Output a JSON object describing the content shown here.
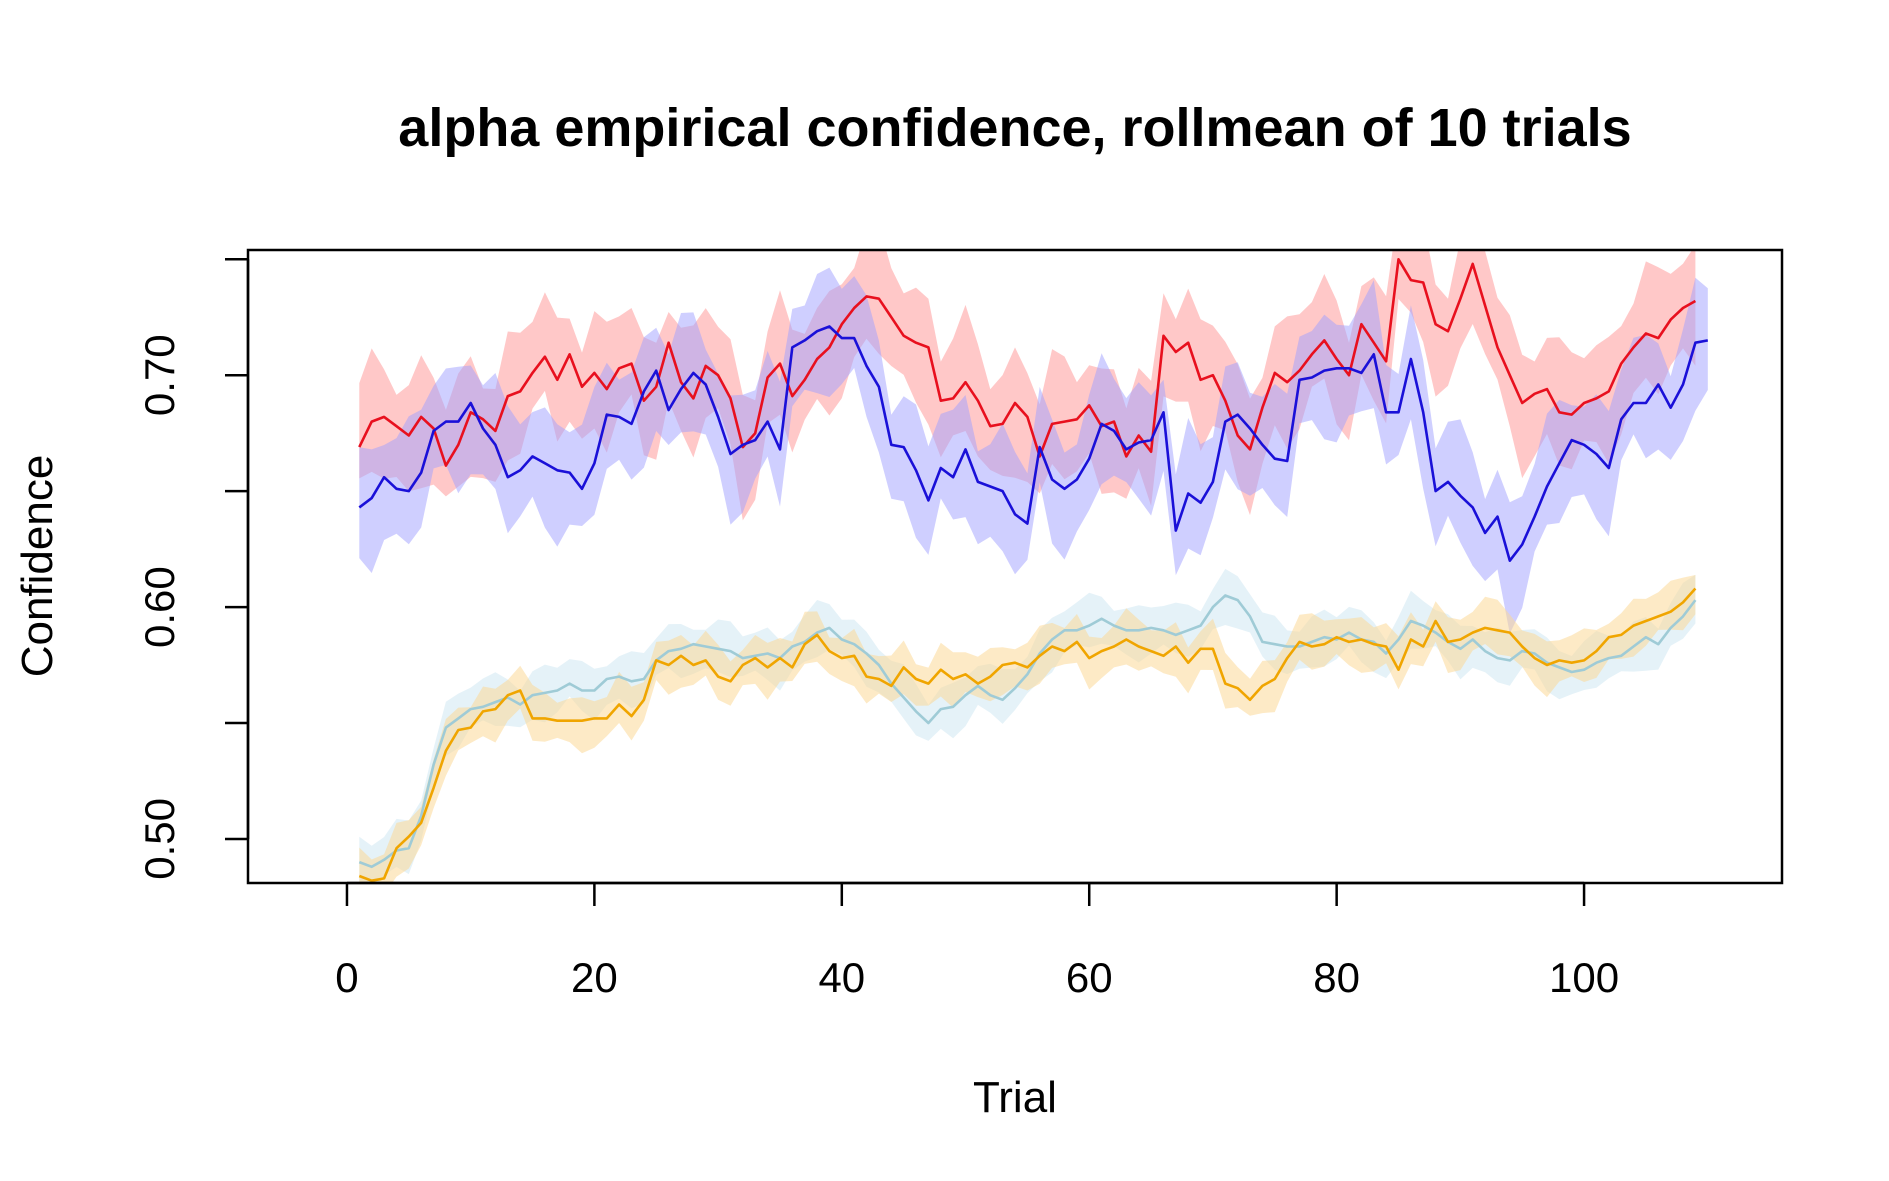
{
  "chart_data": {
    "type": "line",
    "title": "alpha empirical confidence, rollmean of  10 trials",
    "xlabel": "Trial",
    "ylabel": "Confidence",
    "xlim": [
      -8,
      116
    ],
    "ylim": [
      0.481,
      0.754
    ],
    "xticks": [
      0,
      20,
      40,
      60,
      80,
      100
    ],
    "yticks": [
      0.5,
      0.55,
      0.6,
      0.65,
      0.7,
      0.75
    ],
    "ytick_labels": [
      "0.50",
      "",
      "0.60",
      "",
      "0.70",
      ""
    ],
    "grid": false,
    "legend": "none",
    "x_start": 1,
    "series": [
      {
        "line_color": "#e8101e",
        "band_color": "#ff9a9a",
        "band_opacity": 0.55,
        "band_halfwidth": 0.023,
        "values": [
          0.669,
          0.68,
          0.682,
          0.678,
          0.674,
          0.682,
          0.677,
          0.661,
          0.67,
          0.684,
          0.681,
          0.676,
          0.691,
          0.693,
          0.701,
          0.708,
          0.698,
          0.709,
          0.695,
          0.701,
          0.694,
          0.703,
          0.705,
          0.689,
          0.695,
          0.714,
          0.697,
          0.69,
          0.704,
          0.7,
          0.69,
          0.669,
          0.675,
          0.699,
          0.705,
          0.691,
          0.698,
          0.707,
          0.712,
          0.722,
          0.729,
          0.734,
          0.733,
          0.725,
          0.717,
          0.714,
          0.712,
          0.689,
          0.69,
          0.697,
          0.689,
          0.678,
          0.679,
          0.688,
          0.682,
          0.665,
          0.679,
          0.68,
          0.681,
          0.687,
          0.678,
          0.68,
          0.665,
          0.674,
          0.667,
          0.717,
          0.71,
          0.714,
          0.698,
          0.7,
          0.689,
          0.674,
          0.668,
          0.686,
          0.701,
          0.697,
          0.702,
          0.709,
          0.715,
          0.707,
          0.7,
          0.722,
          0.714,
          0.706,
          0.75,
          0.741,
          0.74,
          0.722,
          0.719,
          0.733,
          0.748,
          0.73,
          0.712,
          0.7,
          0.688,
          0.692,
          0.694,
          0.684,
          0.683,
          0.688,
          0.69,
          0.693,
          0.705,
          0.712,
          0.718,
          0.716,
          0.724,
          0.729,
          0.732
        ],
        "hidden_values": [
          0.669,
          0.68,
          0.682,
          0.678,
          0.674,
          0.682,
          0.677,
          0.661,
          0.67,
          0.684,
          0.681,
          0.676,
          0.691,
          0.693,
          0.701,
          0.708,
          0.698,
          0.709,
          0.695,
          0.701,
          0.694,
          0.703,
          0.705,
          0.689,
          0.695,
          0.714,
          0.697,
          0.69,
          0.704,
          0.7,
          0.69,
          0.669,
          0.675,
          0.699,
          0.705,
          0.691,
          0.698,
          0.707,
          0.712,
          0.722,
          0.729,
          0.734,
          0.733,
          0.725,
          0.717,
          0.714,
          0.712,
          0.689,
          0.69,
          0.697,
          0.689,
          0.678,
          0.679,
          0.688,
          0.682,
          0.665,
          0.679,
          0.68,
          0.681,
          0.687,
          0.678,
          0.68,
          0.665,
          0.674,
          0.667,
          0.717,
          0.71,
          0.714,
          0.698,
          0.7,
          0.689,
          0.674,
          0.668,
          0.686,
          0.701,
          0.697,
          0.702,
          0.709,
          0.715,
          0.707,
          0.7,
          0.722,
          0.714,
          0.706,
          0.75,
          0.741,
          0.74,
          0.722,
          0.719,
          0.733,
          0.748,
          0.73,
          0.712,
          0.7,
          0.688,
          0.692,
          0.694,
          0.684,
          0.683,
          0.688,
          0.69,
          0.693,
          0.705,
          0.712,
          0.718,
          0.716,
          0.724,
          0.729,
          0.732
        ]
      },
      {
        "line_color": "#1a10d8",
        "band_color": "#a0a0ff",
        "band_opacity": 0.5,
        "band_halfwidth": 0.023,
        "values": [
          0.643,
          0.647,
          0.656,
          0.651,
          0.65,
          0.658,
          0.676,
          0.68,
          0.68,
          0.688,
          0.677,
          0.67,
          0.656,
          0.659,
          0.665,
          0.662,
          0.659,
          0.658,
          0.651,
          0.662,
          0.683,
          0.682,
          0.679,
          0.693,
          0.702,
          0.685,
          0.694,
          0.701,
          0.696,
          0.682,
          0.666,
          0.67,
          0.672,
          0.68,
          0.668,
          0.712,
          0.715,
          0.719,
          0.721,
          0.716,
          0.716,
          0.704,
          0.695,
          0.67,
          0.669,
          0.659,
          0.646,
          0.66,
          0.656,
          0.668,
          0.654,
          0.652,
          0.65,
          0.64,
          0.636,
          0.669,
          0.655,
          0.651,
          0.655,
          0.664,
          0.679,
          0.676,
          0.668,
          0.671,
          0.672,
          0.684,
          0.633,
          0.649,
          0.645,
          0.654,
          0.68,
          0.683,
          0.677,
          0.67,
          0.664,
          0.663,
          0.698,
          0.699,
          0.702,
          0.703,
          0.703,
          0.701,
          0.709,
          0.684,
          0.684,
          0.707,
          0.684,
          0.65,
          0.654,
          0.648,
          0.643,
          0.632,
          0.639,
          0.62,
          0.627,
          0.639,
          0.652,
          0.662,
          0.672,
          0.67,
          0.666,
          0.66,
          0.681,
          0.688,
          0.688,
          0.696,
          0.686,
          0.696,
          0.714,
          0.715
        ],
        "hidden_values": [
          0.643,
          0.647,
          0.656,
          0.651,
          0.65,
          0.658,
          0.676,
          0.68,
          0.68,
          0.688,
          0.677,
          0.67,
          0.656,
          0.659,
          0.665,
          0.662,
          0.659,
          0.658,
          0.651,
          0.662,
          0.683,
          0.682,
          0.679,
          0.693,
          0.702,
          0.685,
          0.694,
          0.701,
          0.696,
          0.682,
          0.666,
          0.67,
          0.672,
          0.68,
          0.668,
          0.712,
          0.715,
          0.719,
          0.721,
          0.716,
          0.716,
          0.704,
          0.695,
          0.67,
          0.669,
          0.659,
          0.646,
          0.66,
          0.656,
          0.668,
          0.654,
          0.652,
          0.65,
          0.64,
          0.636,
          0.669,
          0.655,
          0.651,
          0.655,
          0.664,
          0.679,
          0.676,
          0.668,
          0.671,
          0.672,
          0.684,
          0.633,
          0.649,
          0.645,
          0.654,
          0.68,
          0.683,
          0.677,
          0.67,
          0.664,
          0.663,
          0.698,
          0.699,
          0.702,
          0.703,
          0.703,
          0.701,
          0.709,
          0.684,
          0.684,
          0.707,
          0.684,
          0.65,
          0.654,
          0.648,
          0.643,
          0.632,
          0.639,
          0.62,
          0.627,
          0.639,
          0.652,
          0.662,
          0.672,
          0.67,
          0.666,
          0.66,
          0.681,
          0.688,
          0.688,
          0.696,
          0.686,
          0.696,
          0.714,
          0.715
        ]
      },
      {
        "line_color": "#9fcbd6",
        "band_color": "#cfe8f2",
        "band_opacity": 0.55,
        "band_halfwidth": 0.01,
        "values": [
          0.49,
          0.488,
          0.491,
          0.495,
          0.496,
          0.51,
          0.532,
          0.548,
          0.552,
          0.556,
          0.557,
          0.559,
          0.561,
          0.558,
          0.562,
          0.563,
          0.564,
          0.567,
          0.564,
          0.564,
          0.569,
          0.57,
          0.568,
          0.569,
          0.577,
          0.581,
          0.582,
          0.584,
          0.583,
          0.582,
          0.581,
          0.578,
          0.579,
          0.58,
          0.578,
          0.583,
          0.585,
          0.589,
          0.591,
          0.586,
          0.584,
          0.58,
          0.575,
          0.567,
          0.561,
          0.555,
          0.55,
          0.556,
          0.557,
          0.562,
          0.566,
          0.562,
          0.56,
          0.565,
          0.571,
          0.58,
          0.586,
          0.59,
          0.59,
          0.592,
          0.595,
          0.592,
          0.59,
          0.59,
          0.591,
          0.59,
          0.588,
          0.59,
          0.592,
          0.6,
          0.605,
          0.603,
          0.596,
          0.585,
          0.584,
          0.583,
          0.583,
          0.585,
          0.587,
          0.586,
          0.589,
          0.586,
          0.585,
          0.58,
          0.586,
          0.594,
          0.592,
          0.589,
          0.585,
          0.582,
          0.586,
          0.581,
          0.578,
          0.577,
          0.581,
          0.58,
          0.576,
          0.574,
          0.572,
          0.573,
          0.576,
          0.578,
          0.579,
          0.583,
          0.587,
          0.584,
          0.591,
          0.596,
          0.603
        ],
        "hidden_values": [
          0.49,
          0.488,
          0.491,
          0.495,
          0.496,
          0.51,
          0.532,
          0.548,
          0.552,
          0.556,
          0.557,
          0.559,
          0.561,
          0.558,
          0.562,
          0.563,
          0.564,
          0.567,
          0.564,
          0.564,
          0.569,
          0.57,
          0.568,
          0.569,
          0.577,
          0.581,
          0.582,
          0.584,
          0.583,
          0.582,
          0.581,
          0.578,
          0.579,
          0.58,
          0.578,
          0.583,
          0.585,
          0.589,
          0.591,
          0.586,
          0.584,
          0.58,
          0.575,
          0.567,
          0.561,
          0.555,
          0.55,
          0.556,
          0.557,
          0.562,
          0.566,
          0.562,
          0.56,
          0.565,
          0.571,
          0.58,
          0.586,
          0.59,
          0.59,
          0.592,
          0.595,
          0.592,
          0.59,
          0.59,
          0.591,
          0.59,
          0.588,
          0.59,
          0.592,
          0.6,
          0.605,
          0.603,
          0.596,
          0.585,
          0.584,
          0.583,
          0.583,
          0.585,
          0.587,
          0.586,
          0.589,
          0.586,
          0.585,
          0.58,
          0.586,
          0.594,
          0.592,
          0.589,
          0.585,
          0.582,
          0.586,
          0.581,
          0.578,
          0.577,
          0.581,
          0.58,
          0.576,
          0.574,
          0.572,
          0.573,
          0.576,
          0.578,
          0.579,
          0.583,
          0.587,
          0.584,
          0.591,
          0.596,
          0.603
        ]
      },
      {
        "line_color": "#f0a500",
        "band_color": "#fbd898",
        "band_opacity": 0.55,
        "band_halfwidth": 0.01,
        "values": [
          0.484,
          0.482,
          0.483,
          0.496,
          0.501,
          0.507,
          0.522,
          0.538,
          0.547,
          0.548,
          0.555,
          0.556,
          0.562,
          0.564,
          0.552,
          0.552,
          0.551,
          0.551,
          0.551,
          0.552,
          0.552,
          0.558,
          0.553,
          0.56,
          0.577,
          0.575,
          0.579,
          0.575,
          0.577,
          0.57,
          0.568,
          0.575,
          0.578,
          0.574,
          0.578,
          0.574,
          0.584,
          0.588,
          0.581,
          0.578,
          0.579,
          0.57,
          0.569,
          0.566,
          0.574,
          0.569,
          0.567,
          0.573,
          0.569,
          0.571,
          0.567,
          0.57,
          0.575,
          0.576,
          0.574,
          0.579,
          0.583,
          0.581,
          0.585,
          0.578,
          0.581,
          0.583,
          0.586,
          0.583,
          0.581,
          0.579,
          0.583,
          0.576,
          0.582,
          0.582,
          0.567,
          0.565,
          0.56,
          0.566,
          0.569,
          0.578,
          0.585,
          0.583,
          0.584,
          0.587,
          0.585,
          0.586,
          0.584,
          0.583,
          0.573,
          0.586,
          0.583,
          0.594,
          0.585,
          0.586,
          0.589,
          0.591,
          0.59,
          0.589,
          0.583,
          0.578,
          0.575,
          0.577,
          0.576,
          0.577,
          0.581,
          0.587,
          0.588,
          0.592,
          0.594,
          0.596,
          0.598,
          0.602,
          0.608
        ],
        "hidden_values": [
          0.484,
          0.482,
          0.483,
          0.496,
          0.501,
          0.507,
          0.522,
          0.538,
          0.547,
          0.548,
          0.555,
          0.556,
          0.562,
          0.564,
          0.552,
          0.552,
          0.551,
          0.551,
          0.551,
          0.552,
          0.552,
          0.558,
          0.553,
          0.56,
          0.577,
          0.575,
          0.579,
          0.575,
          0.577,
          0.57,
          0.568,
          0.575,
          0.578,
          0.574,
          0.578,
          0.574,
          0.584,
          0.588,
          0.581,
          0.578,
          0.579,
          0.57,
          0.569,
          0.566,
          0.574,
          0.569,
          0.567,
          0.573,
          0.569,
          0.571,
          0.567,
          0.57,
          0.575,
          0.576,
          0.574,
          0.579,
          0.583,
          0.581,
          0.585,
          0.578,
          0.581,
          0.583,
          0.586,
          0.583,
          0.581,
          0.579,
          0.583,
          0.576,
          0.582,
          0.582,
          0.567,
          0.565,
          0.56,
          0.566,
          0.569,
          0.578,
          0.585,
          0.583,
          0.584,
          0.587,
          0.585,
          0.586,
          0.584,
          0.583,
          0.573,
          0.586,
          0.583,
          0.594,
          0.585,
          0.586,
          0.589,
          0.591,
          0.59,
          0.589,
          0.583,
          0.578,
          0.575,
          0.577,
          0.576,
          0.577,
          0.581,
          0.587,
          0.588,
          0.592,
          0.594,
          0.596,
          0.598,
          0.602,
          0.608
        ]
      }
    ]
  }
}
